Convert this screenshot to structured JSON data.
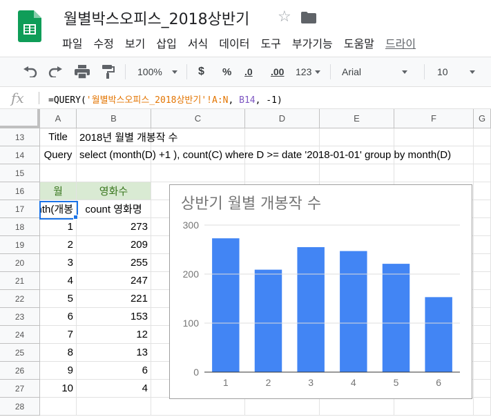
{
  "app": {
    "doc_title": "월별박스오피스_2018상반기",
    "menu": [
      "파일",
      "수정",
      "보기",
      "삽입",
      "서식",
      "데이터",
      "도구",
      "부가기능",
      "도움말"
    ],
    "menu_link": "드라이"
  },
  "toolbar": {
    "zoom": "100%",
    "currency": "$",
    "percent": "%",
    "dec_decrease": ".0",
    "dec_increase": ".00",
    "more_formats": "123",
    "font": "Arial",
    "font_size": "10"
  },
  "formula_bar": {
    "fx": "fx",
    "prefix": "=QUERY(",
    "range": "'월별박스오피스_2018상반기'!A:N",
    "sep1": ", ",
    "ref": "B14",
    "suffix": ", -1)"
  },
  "columns": [
    "A",
    "B",
    "C",
    "D",
    "E",
    "F",
    "G"
  ],
  "rows": [
    "13",
    "14",
    "15",
    "16",
    "17",
    "18",
    "19",
    "20",
    "21",
    "22",
    "23",
    "24",
    "25",
    "26",
    "27",
    "28"
  ],
  "cells": {
    "a13": "Title",
    "b13": "2018년 월별 개봉작 수",
    "a14": "Query",
    "b14": "select (month(D) +1 ), count(C) where D >= date '2018-01-01' group by month(D)",
    "a16": "월",
    "b16": "영화수",
    "a17": "month(개봉",
    "b17": "count 영화명"
  },
  "table": [
    {
      "month": "1",
      "count": "273"
    },
    {
      "month": "2",
      "count": "209"
    },
    {
      "month": "3",
      "count": "255"
    },
    {
      "month": "4",
      "count": "247"
    },
    {
      "month": "5",
      "count": "221"
    },
    {
      "month": "6",
      "count": "153"
    },
    {
      "month": "7",
      "count": "12"
    },
    {
      "month": "8",
      "count": "13"
    },
    {
      "month": "9",
      "count": "6"
    },
    {
      "month": "10",
      "count": "4"
    }
  ],
  "chart_data": {
    "type": "bar",
    "title": "상반기 월별 개봉작 수",
    "categories": [
      "1",
      "2",
      "3",
      "4",
      "5",
      "6"
    ],
    "values": [
      273,
      209,
      255,
      247,
      221,
      153
    ],
    "ylim": [
      0,
      300
    ],
    "yticks": [
      0,
      100,
      200,
      300
    ],
    "grid": true,
    "legend": "none",
    "bar_color": "#4285f4"
  },
  "colors": {
    "accent": "#1a73e8",
    "header_green_bg": "#d9ead3",
    "header_green_text": "#38761d",
    "logo_green": "#0f9d58"
  }
}
